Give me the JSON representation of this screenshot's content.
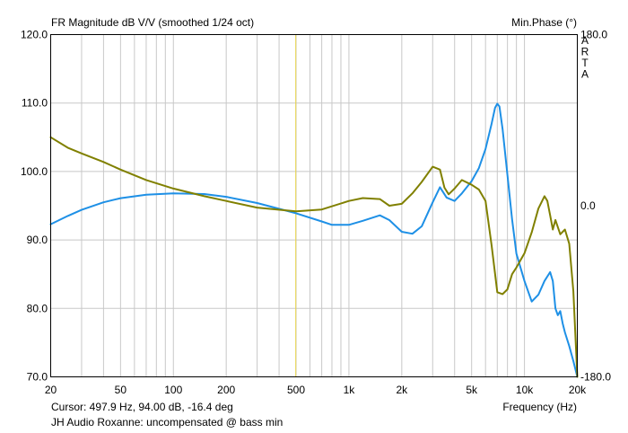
{
  "chart_data": {
    "type": "line",
    "title": "FR Magnitude dB V/V (smoothed 1/24 oct)",
    "right_axis_title": "Min.Phase (°)",
    "watermark": "ARTA",
    "xlabel": "Frequency (Hz)",
    "x_scale": "log",
    "xlim": [
      20,
      20000
    ],
    "ylim": [
      70,
      120
    ],
    "y2lim": [
      -180,
      180
    ],
    "x_ticks": [
      {
        "value": 20,
        "label": "20"
      },
      {
        "value": 50,
        "label": "50"
      },
      {
        "value": 100,
        "label": "100"
      },
      {
        "value": 200,
        "label": "200"
      },
      {
        "value": 500,
        "label": "500"
      },
      {
        "value": 1000,
        "label": "1k"
      },
      {
        "value": 2000,
        "label": "2k"
      },
      {
        "value": 5000,
        "label": "5k"
      },
      {
        "value": 10000,
        "label": "10k"
      },
      {
        "value": 20000,
        "label": "20k"
      }
    ],
    "y_ticks": [
      {
        "value": 70,
        "label": "70.0"
      },
      {
        "value": 80,
        "label": "80.0"
      },
      {
        "value": 90,
        "label": "90.0"
      },
      {
        "value": 100,
        "label": "100.0"
      },
      {
        "value": 110,
        "label": "110.0"
      },
      {
        "value": 120,
        "label": "120.0"
      }
    ],
    "y2_ticks": [
      {
        "value": 180,
        "label": "180.0"
      },
      {
        "value": 0,
        "label": "0.0"
      },
      {
        "value": -180,
        "label": "-180.0"
      }
    ],
    "grid": true,
    "cursor_x": 497.9,
    "cursor_text": "Cursor: 497.9 Hz, 94.00 dB, -16.4 deg",
    "caption": "JH Audio Roxanne: uncompensated @ bass min",
    "series": [
      {
        "axis": "left",
        "color": "#1e90e6",
        "x": [
          20,
          25,
          30,
          40,
          50,
          70,
          100,
          150,
          200,
          300,
          500,
          700,
          800,
          1000,
          1200,
          1500,
          1700,
          2000,
          2300,
          2600,
          3000,
          3300,
          3600,
          4000,
          4400,
          5000,
          5500,
          6000,
          6500,
          6800,
          7000,
          7200,
          7500,
          8000,
          8500,
          9000,
          10000,
          11000,
          12000,
          13000,
          14000,
          14500,
          15000,
          15500,
          16000,
          16500,
          17000,
          18000,
          19000,
          20000
        ],
        "y": [
          92.3,
          93.5,
          94.4,
          95.5,
          96.1,
          96.6,
          96.8,
          96.7,
          96.3,
          95.4,
          93.9,
          92.7,
          92.2,
          92.2,
          92.8,
          93.6,
          92.9,
          91.2,
          90.9,
          92.0,
          95.5,
          97.7,
          96.2,
          95.7,
          96.8,
          98.6,
          100.5,
          103.3,
          107.0,
          109.3,
          109.9,
          109.5,
          106.2,
          99.5,
          93.0,
          88.0,
          84.0,
          81.0,
          82.0,
          84.0,
          85.3,
          84.0,
          80.0,
          79.0,
          79.6,
          77.8,
          76.5,
          74.5,
          72.3,
          70.0
        ]
      },
      {
        "axis": "right",
        "color": "#808000",
        "x": [
          20,
          25,
          30,
          40,
          50,
          70,
          100,
          150,
          200,
          300,
          500,
          700,
          1000,
          1200,
          1500,
          1700,
          2000,
          2300,
          2600,
          3000,
          3300,
          3500,
          3700,
          4000,
          4400,
          5000,
          5500,
          6000,
          6500,
          7000,
          7500,
          8000,
          8500,
          9000,
          10000,
          11000,
          12000,
          13000,
          13500,
          14000,
          14500,
          15000,
          16000,
          17000,
          18000,
          19000,
          20000
        ],
        "y": [
          72,
          61,
          55,
          46,
          38,
          27,
          18,
          10,
          5,
          -2,
          -6,
          -4,
          5,
          8,
          7,
          0,
          2,
          13,
          25,
          41,
          38,
          19,
          12,
          18,
          27,
          22,
          17,
          5,
          -42,
          -91,
          -93,
          -88,
          -72,
          -65,
          -50,
          -28,
          -3,
          10,
          5,
          -10,
          -25,
          -15,
          -30,
          -25,
          -40,
          -90,
          -180
        ]
      }
    ]
  }
}
